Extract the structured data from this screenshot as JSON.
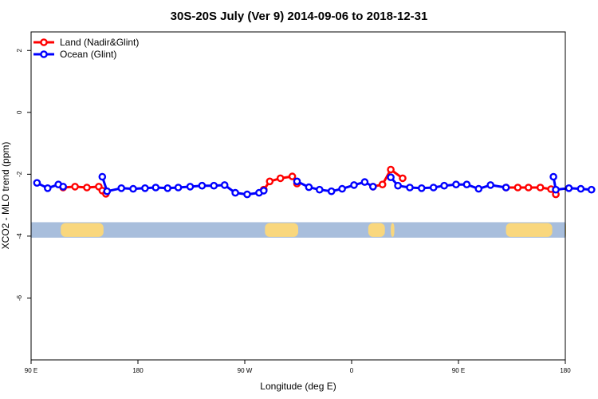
{
  "chart_data": {
    "type": "line",
    "title": "30S-20S July (Ver 9)   2014-09-06 to 2018-12-31",
    "xlabel": "Longitude (deg E)",
    "ylabel": "XCO2 - MLO trend (ppm)",
    "xlim": [
      90,
      540
    ],
    "ylim": [
      -8,
      2.6
    ],
    "x_ticks": [
      {
        "value": 90,
        "label": "90 E"
      },
      {
        "value": 180,
        "label": "180"
      },
      {
        "value": 270,
        "label": "90 W"
      },
      {
        "value": 360,
        "label": "0"
      },
      {
        "value": 450,
        "label": "90 E"
      },
      {
        "value": 540,
        "label": "180"
      }
    ],
    "y_ticks": [
      {
        "value": 2,
        "label": "2"
      },
      {
        "value": 0,
        "label": "0"
      },
      {
        "value": -2,
        "label": "-2"
      },
      {
        "value": -4,
        "label": "-4"
      },
      {
        "value": -6,
        "label": "-6"
      }
    ],
    "legend": {
      "position": "top-left"
    },
    "series": [
      {
        "name": "Land (Nadir&Glint)",
        "color": "#ff0000",
        "segments": [
          [
            [
              117,
              -2.43
            ],
            [
              127,
              -2.4
            ],
            [
              137,
              -2.43
            ],
            [
              147,
              -2.4
            ],
            [
              150,
              -2.53
            ],
            [
              153,
              -2.63
            ]
          ],
          [
            [
              286,
              -2.5
            ],
            [
              291,
              -2.23
            ],
            [
              300,
              -2.13
            ],
            [
              310,
              -2.07
            ],
            [
              314,
              -2.3
            ]
          ],
          [
            [
              378,
              -2.4
            ],
            [
              386,
              -2.33
            ],
            [
              393,
              -1.85
            ],
            [
              403,
              -2.13
            ]
          ],
          [
            [
              490,
              -2.43
            ],
            [
              500,
              -2.43
            ],
            [
              509,
              -2.43
            ],
            [
              519,
              -2.43
            ],
            [
              528,
              -2.48
            ],
            [
              532,
              -2.65
            ]
          ]
        ]
      },
      {
        "name": "Ocean (Glint)",
        "color": "#0000ff",
        "segments": [
          [
            [
              95,
              -2.28
            ],
            [
              104,
              -2.45
            ],
            [
              113,
              -2.33
            ],
            [
              117,
              -2.4
            ]
          ],
          [
            [
              150,
              -2.08
            ],
            [
              154,
              -2.55
            ],
            [
              166,
              -2.45
            ],
            [
              176,
              -2.47
            ],
            [
              186,
              -2.45
            ],
            [
              195,
              -2.43
            ],
            [
              205,
              -2.45
            ],
            [
              214,
              -2.43
            ],
            [
              224,
              -2.4
            ],
            [
              234,
              -2.37
            ],
            [
              244,
              -2.37
            ],
            [
              253,
              -2.35
            ],
            [
              262,
              -2.6
            ],
            [
              272,
              -2.65
            ],
            [
              282,
              -2.6
            ],
            [
              286,
              -2.53
            ]
          ],
          [
            [
              314,
              -2.23
            ],
            [
              324,
              -2.42
            ],
            [
              333,
              -2.5
            ],
            [
              343,
              -2.55
            ],
            [
              352,
              -2.47
            ],
            [
              362,
              -2.35
            ],
            [
              371,
              -2.25
            ],
            [
              378,
              -2.4
            ]
          ],
          [
            [
              393,
              -2.1
            ],
            [
              399,
              -2.37
            ],
            [
              409,
              -2.43
            ],
            [
              419,
              -2.45
            ],
            [
              429,
              -2.43
            ],
            [
              438,
              -2.37
            ],
            [
              448,
              -2.33
            ],
            [
              457,
              -2.33
            ],
            [
              467,
              -2.47
            ],
            [
              477,
              -2.35
            ],
            [
              490,
              -2.43
            ]
          ],
          [
            [
              530,
              -2.08
            ],
            [
              532,
              -2.5
            ],
            [
              543,
              -2.45
            ],
            [
              553,
              -2.47
            ],
            [
              562,
              -2.5
            ]
          ]
        ]
      }
    ],
    "map_strip": {
      "y_range": [
        -4.05,
        -3.55
      ],
      "ocean_color": "#a8bedc",
      "land_color": "#f9d77d",
      "land_spans": [
        [
          115,
          151
        ],
        [
          287,
          315
        ],
        [
          374,
          388
        ],
        [
          393,
          396
        ],
        [
          490,
          529
        ],
        [
          540,
          542
        ]
      ]
    }
  }
}
